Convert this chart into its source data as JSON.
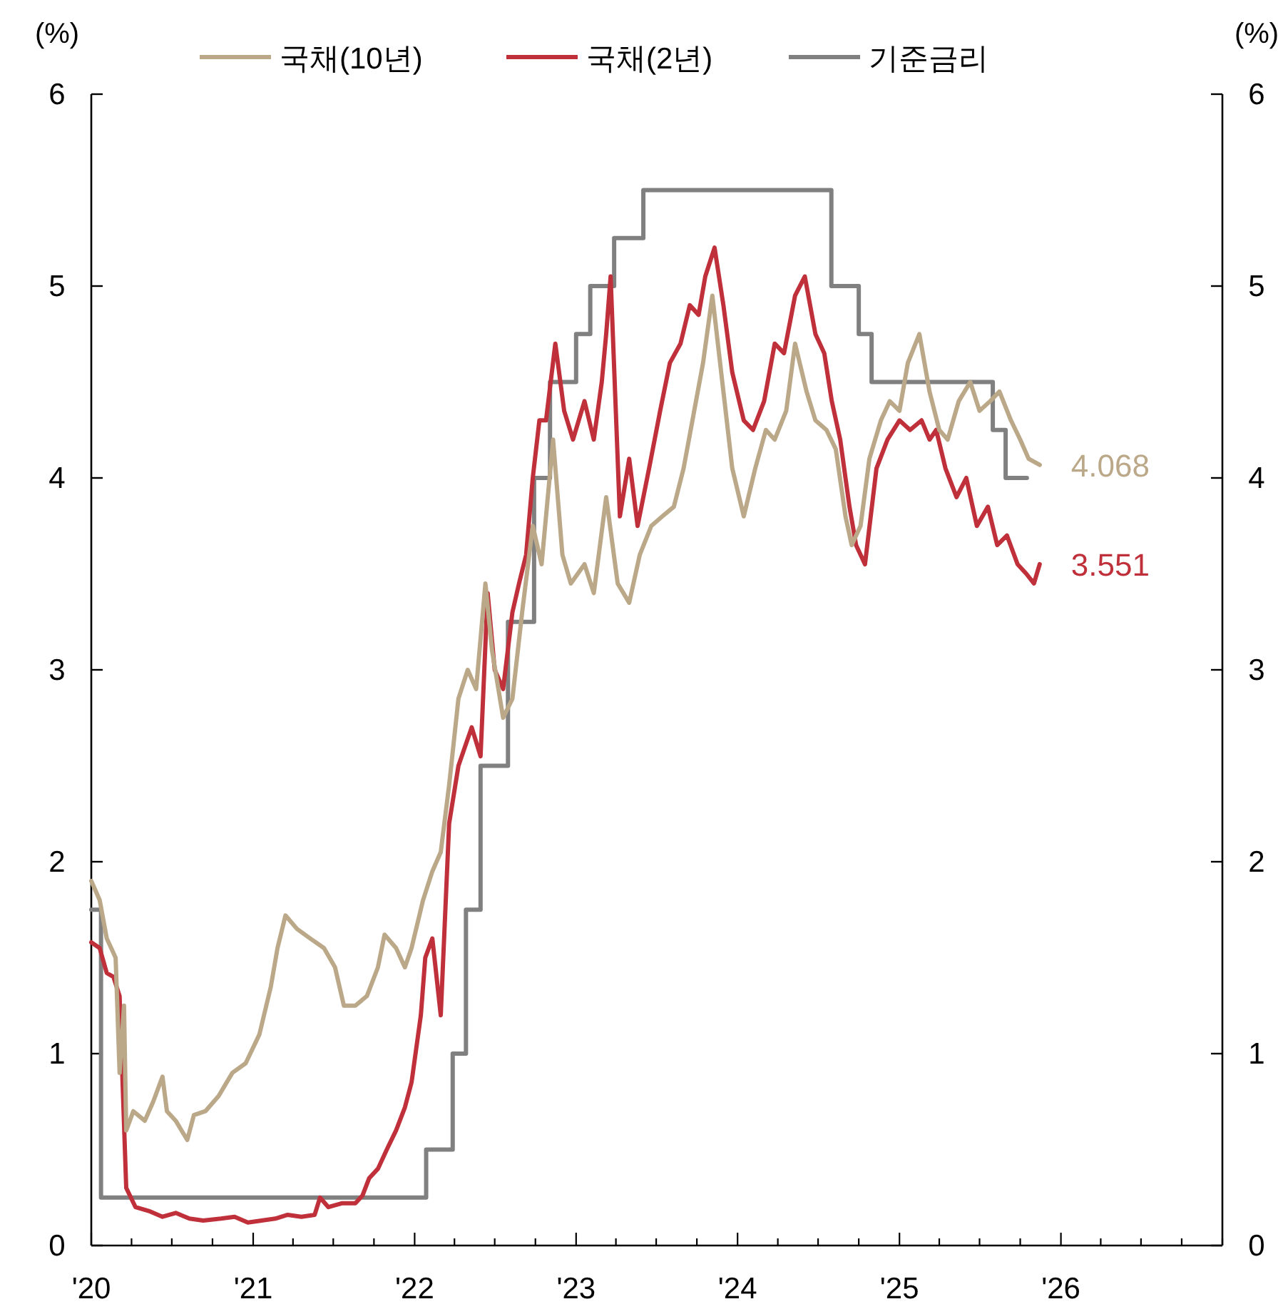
{
  "chart_data": {
    "type": "line",
    "ylabel": "(%)",
    "y2label": "(%)",
    "xlim": [
      "2020-01-01",
      "2027-01-01"
    ],
    "xticks": [
      {
        "value": "2020-01-01",
        "label": "'20"
      },
      {
        "value": "2020-04-01",
        "label": null
      },
      {
        "value": "2020-07-01",
        "label": null
      },
      {
        "value": "2020-10-01",
        "label": null
      },
      {
        "value": "2021-01-01",
        "label": "'21"
      },
      {
        "value": "2021-04-01",
        "label": null
      },
      {
        "value": "2021-07-01",
        "label": null
      },
      {
        "value": "2021-10-01",
        "label": null
      },
      {
        "value": "2022-01-01",
        "label": "'22"
      },
      {
        "value": "2022-04-01",
        "label": null
      },
      {
        "value": "2022-07-01",
        "label": null
      },
      {
        "value": "2022-10-01",
        "label": null
      },
      {
        "value": "2023-01-01",
        "label": "'23"
      },
      {
        "value": "2023-04-01",
        "label": null
      },
      {
        "value": "2023-07-01",
        "label": null
      },
      {
        "value": "2023-10-01",
        "label": null
      },
      {
        "value": "2024-01-01",
        "label": "'24"
      },
      {
        "value": "2024-04-01",
        "label": null
      },
      {
        "value": "2024-07-01",
        "label": null
      },
      {
        "value": "2024-10-01",
        "label": null
      },
      {
        "value": "2025-01-01",
        "label": "'25"
      },
      {
        "value": "2025-04-01",
        "label": null
      },
      {
        "value": "2025-07-01",
        "label": null
      },
      {
        "value": "2025-10-01",
        "label": null
      },
      {
        "value": "2026-01-01",
        "label": "'26"
      },
      {
        "value": "2026-04-01",
        "label": null
      },
      {
        "value": "2026-07-01",
        "label": null
      },
      {
        "value": "2026-10-01",
        "label": null
      },
      {
        "value": "2027-01-01",
        "label": null
      }
    ],
    "ylim": [
      0,
      6
    ],
    "yticks": [
      0,
      1,
      2,
      3,
      4,
      5,
      6
    ],
    "y2lim": [
      0,
      6
    ],
    "y2ticks": [
      0,
      1,
      2,
      3,
      4,
      5,
      6
    ],
    "legend": "top",
    "grid": false,
    "series": [
      {
        "name": "국채(10년)",
        "color": "#bba888",
        "x": [
          "2020-01-01",
          "2020-01-20",
          "2020-02-05",
          "2020-02-25",
          "2020-03-05",
          "2020-03-15",
          "2020-03-20",
          "2020-04-05",
          "2020-05-01",
          "2020-05-20",
          "2020-06-10",
          "2020-06-20",
          "2020-07-10",
          "2020-08-05",
          "2020-08-20",
          "2020-09-15",
          "2020-10-15",
          "2020-11-15",
          "2020-12-15",
          "2021-01-15",
          "2021-02-10",
          "2021-02-25",
          "2021-03-15",
          "2021-04-10",
          "2021-05-10",
          "2021-06-10",
          "2021-07-05",
          "2021-07-25",
          "2021-08-20",
          "2021-09-15",
          "2021-10-10",
          "2021-10-25",
          "2021-11-20",
          "2021-12-10",
          "2021-12-25",
          "2022-01-20",
          "2022-02-10",
          "2022-03-01",
          "2022-03-20",
          "2022-04-10",
          "2022-05-01",
          "2022-05-20",
          "2022-06-10",
          "2022-06-25",
          "2022-07-20",
          "2022-08-10",
          "2022-09-01",
          "2022-09-25",
          "2022-10-15",
          "2022-11-10",
          "2022-12-01",
          "2022-12-20",
          "2023-01-20",
          "2023-02-10",
          "2023-03-10",
          "2023-04-05",
          "2023-05-01",
          "2023-05-25",
          "2023-06-20",
          "2023-07-15",
          "2023-08-10",
          "2023-09-01",
          "2023-09-25",
          "2023-10-15",
          "2023-11-05",
          "2023-11-25",
          "2023-12-20",
          "2024-01-15",
          "2024-02-10",
          "2024-03-05",
          "2024-03-25",
          "2024-04-20",
          "2024-05-10",
          "2024-06-05",
          "2024-06-25",
          "2024-07-20",
          "2024-08-10",
          "2024-09-01",
          "2024-09-15",
          "2024-10-05",
          "2024-10-25",
          "2024-11-20",
          "2024-12-10",
          "2025-01-01",
          "2025-01-20",
          "2025-02-15",
          "2025-03-10",
          "2025-04-01",
          "2025-04-20",
          "2025-05-15",
          "2025-06-10",
          "2025-07-01",
          "2025-07-25",
          "2025-08-15",
          "2025-09-10",
          "2025-10-01",
          "2025-10-20",
          "2025-11-14"
        ],
        "values": [
          1.9,
          1.8,
          1.6,
          1.5,
          0.9,
          1.25,
          0.6,
          0.7,
          0.65,
          0.75,
          0.88,
          0.7,
          0.65,
          0.55,
          0.68,
          0.7,
          0.78,
          0.9,
          0.95,
          1.1,
          1.35,
          1.55,
          1.72,
          1.65,
          1.6,
          1.55,
          1.45,
          1.25,
          1.25,
          1.3,
          1.45,
          1.62,
          1.55,
          1.45,
          1.55,
          1.8,
          1.95,
          2.05,
          2.4,
          2.85,
          3.0,
          2.9,
          3.45,
          3.1,
          2.75,
          2.85,
          3.3,
          3.75,
          3.55,
          4.2,
          3.6,
          3.45,
          3.55,
          3.4,
          3.9,
          3.45,
          3.35,
          3.6,
          3.75,
          3.8,
          3.85,
          4.05,
          4.35,
          4.6,
          4.95,
          4.55,
          4.05,
          3.8,
          4.05,
          4.25,
          4.2,
          4.35,
          4.7,
          4.45,
          4.3,
          4.25,
          4.15,
          3.8,
          3.65,
          3.75,
          4.1,
          4.3,
          4.4,
          4.35,
          4.6,
          4.75,
          4.45,
          4.25,
          4.2,
          4.4,
          4.5,
          4.35,
          4.4,
          4.45,
          4.3,
          4.2,
          4.1,
          4.068
        ]
      },
      {
        "name": "국채(2년)",
        "color": "#c0303a",
        "x": [
          "2020-01-01",
          "2020-01-20",
          "2020-02-05",
          "2020-02-20",
          "2020-03-05",
          "2020-03-20",
          "2020-04-10",
          "2020-05-10",
          "2020-06-10",
          "2020-07-10",
          "2020-08-10",
          "2020-09-10",
          "2020-10-20",
          "2020-11-20",
          "2020-12-20",
          "2021-01-20",
          "2021-02-20",
          "2021-03-20",
          "2021-04-20",
          "2021-05-20",
          "2021-06-01",
          "2021-06-20",
          "2021-07-20",
          "2021-08-20",
          "2021-09-05",
          "2021-09-20",
          "2021-10-10",
          "2021-10-30",
          "2021-11-20",
          "2021-12-10",
          "2021-12-25",
          "2022-01-15",
          "2022-01-25",
          "2022-02-10",
          "2022-03-01",
          "2022-03-20",
          "2022-04-10",
          "2022-04-25",
          "2022-05-10",
          "2022-05-30",
          "2022-06-15",
          "2022-07-01",
          "2022-07-20",
          "2022-08-10",
          "2022-08-25",
          "2022-09-10",
          "2022-09-25",
          "2022-10-10",
          "2022-10-25",
          "2022-11-15",
          "2022-12-05",
          "2022-12-25",
          "2023-01-20",
          "2023-02-10",
          "2023-02-28",
          "2023-03-10",
          "2023-03-20",
          "2023-04-10",
          "2023-05-01",
          "2023-05-20",
          "2023-06-15",
          "2023-07-10",
          "2023-08-01",
          "2023-08-25",
          "2023-09-15",
          "2023-10-05",
          "2023-10-20",
          "2023-11-10",
          "2023-11-30",
          "2023-12-20",
          "2024-01-15",
          "2024-02-05",
          "2024-03-01",
          "2024-03-25",
          "2024-04-15",
          "2024-05-10",
          "2024-06-01",
          "2024-06-25",
          "2024-07-15",
          "2024-08-01",
          "2024-08-20",
          "2024-09-10",
          "2024-09-25",
          "2024-10-15",
          "2024-11-10",
          "2024-12-05",
          "2025-01-01",
          "2025-01-25",
          "2025-02-20",
          "2025-03-10",
          "2025-03-25",
          "2025-04-15",
          "2025-05-10",
          "2025-06-01",
          "2025-06-25",
          "2025-07-20",
          "2025-08-10",
          "2025-09-01",
          "2025-09-25",
          "2025-10-15",
          "2025-11-01",
          "2025-11-14"
        ],
        "values": [
          1.58,
          1.55,
          1.42,
          1.4,
          1.3,
          0.3,
          0.2,
          0.18,
          0.15,
          0.17,
          0.14,
          0.13,
          0.14,
          0.15,
          0.12,
          0.13,
          0.14,
          0.16,
          0.15,
          0.16,
          0.25,
          0.2,
          0.22,
          0.22,
          0.26,
          0.35,
          0.4,
          0.5,
          0.6,
          0.72,
          0.85,
          1.2,
          1.5,
          1.6,
          1.2,
          2.2,
          2.5,
          2.6,
          2.7,
          2.55,
          3.4,
          3.0,
          2.9,
          3.3,
          3.45,
          3.6,
          4.0,
          4.3,
          4.3,
          4.7,
          4.35,
          4.2,
          4.4,
          4.2,
          4.5,
          4.75,
          5.05,
          3.8,
          4.1,
          3.75,
          4.05,
          4.35,
          4.6,
          4.7,
          4.9,
          4.85,
          5.05,
          5.2,
          4.9,
          4.55,
          4.3,
          4.25,
          4.4,
          4.7,
          4.65,
          4.95,
          5.05,
          4.75,
          4.65,
          4.4,
          4.2,
          3.85,
          3.65,
          3.55,
          4.05,
          4.2,
          4.3,
          4.25,
          4.3,
          4.2,
          4.25,
          4.05,
          3.9,
          4.0,
          3.75,
          3.85,
          3.65,
          3.7,
          3.55,
          3.5,
          3.45,
          3.551
        ]
      },
      {
        "name": "기준금리",
        "type": "step",
        "color": "#808080",
        "x": [
          "2020-01-01",
          "2020-01-23",
          "2022-01-27",
          "2022-03-28",
          "2022-04-27",
          "2022-05-30",
          "2022-07-31",
          "2022-09-28",
          "2022-11-03",
          "2023-01-01",
          "2023-02-02",
          "2023-03-28",
          "2023-06-02",
          "2024-07-31",
          "2024-10-01",
          "2024-10-30",
          "2025-07-31",
          "2025-08-29",
          "2025-10-16"
        ],
        "values": [
          1.75,
          0.25,
          0.5,
          1.0,
          1.75,
          2.5,
          3.25,
          4.0,
          4.5,
          4.75,
          5.0,
          5.25,
          5.5,
          5.0,
          4.75,
          4.5,
          4.25,
          4.0,
          4.0
        ]
      }
    ],
    "annotations": [
      {
        "text": "4.068",
        "x": "2025-11-14",
        "y": 4.068
      },
      {
        "text": "3.551",
        "x": "2025-11-14",
        "y": 3.551
      }
    ]
  }
}
